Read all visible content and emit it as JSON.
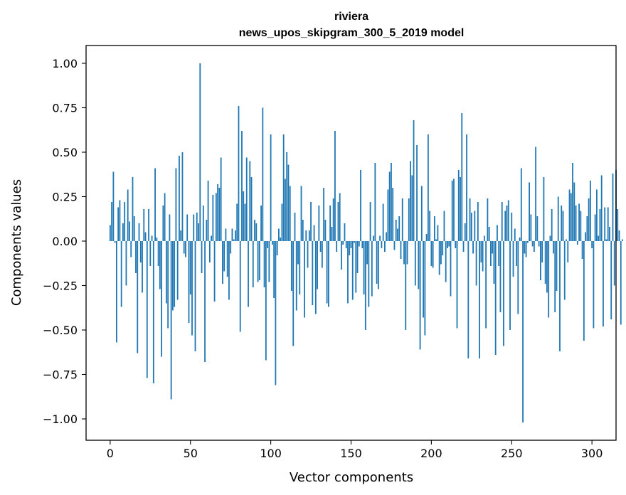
{
  "chart_data": {
    "type": "bar",
    "title_lines": [
      "riviera",
      "news_upos_skipgram_300_5_2019 model"
    ],
    "xlabel": "Vector components",
    "ylabel": "Components values",
    "xlim": [
      -15,
      315
    ],
    "ylim": [
      -1.12,
      1.1
    ],
    "xticks": [
      0,
      50,
      100,
      150,
      200,
      250,
      300
    ],
    "xtick_labels": [
      "0",
      "50",
      "100",
      "150",
      "200",
      "250",
      "300"
    ],
    "yticks": [
      1.0,
      0.75,
      0.5,
      0.25,
      0.0,
      -0.25,
      -0.5,
      -0.75,
      -1.0
    ],
    "ytick_labels": [
      "1.00",
      "0.75",
      "0.50",
      "0.25",
      "0.00",
      "−0.25",
      "−0.50",
      "−0.75",
      "−1.00"
    ],
    "bar_color": "#1f77b4",
    "values": [
      0.09,
      0.22,
      0.39,
      -0.01,
      -0.57,
      0.19,
      0.23,
      -0.37,
      0.1,
      0.22,
      -0.25,
      0.29,
      0.11,
      -0.09,
      0.36,
      0.14,
      -0.18,
      -0.63,
      0.1,
      -0.12,
      -0.29,
      0.18,
      0.05,
      -0.77,
      0.18,
      -0.14,
      0.03,
      -0.8,
      0.41,
      0.02,
      -0.14,
      -0.27,
      -0.65,
      0.2,
      0.27,
      -0.35,
      -0.49,
      0.15,
      -0.89,
      -0.39,
      -0.37,
      0.41,
      -0.33,
      0.48,
      0.06,
      0.5,
      -0.07,
      -0.09,
      0.15,
      -0.46,
      -0.3,
      -0.53,
      0.15,
      -0.62,
      0.16,
      0.1,
      1.0,
      -0.18,
      0.2,
      -0.68,
      0.12,
      0.34,
      -0.12,
      0.03,
      0.26,
      -0.34,
      0.27,
      0.32,
      0.3,
      0.47,
      -0.24,
      -0.17,
      0.07,
      -0.2,
      -0.33,
      -0.07,
      0.07,
      0.01,
      0.06,
      0.21,
      0.76,
      -0.51,
      0.62,
      0.28,
      0.21,
      0.47,
      -0.37,
      0.45,
      0.36,
      -0.26,
      0.12,
      0.1,
      -0.23,
      -0.22,
      0.2,
      0.75,
      -0.26,
      -0.67,
      -0.04,
      -0.23,
      0.6,
      -0.02,
      -0.32,
      -0.81,
      -0.08,
      0.07,
      0.02,
      0.21,
      0.6,
      0.35,
      0.5,
      0.43,
      0.31,
      -0.28,
      -0.59,
      0.16,
      -0.39,
      -0.13,
      -0.3,
      0.31,
      0.12,
      -0.43,
      0.06,
      -0.15,
      0.06,
      0.22,
      -0.36,
      0.09,
      -0.41,
      -0.27,
      0.2,
      -0.06,
      -0.15,
      0.3,
      0.12,
      -0.35,
      -0.37,
      0.2,
      0.08,
      0.24,
      0.62,
      -0.06,
      0.22,
      0.27,
      -0.16,
      -0.02,
      0.1,
      -0.04,
      -0.35,
      -0.08,
      -0.04,
      -0.33,
      -0.01,
      -0.29,
      -0.18,
      -0.03,
      0.4,
      -0.04,
      -0.3,
      -0.5,
      -0.13,
      -0.37,
      0.22,
      -0.31,
      0.03,
      0.44,
      -0.24,
      -0.27,
      0.03,
      -0.04,
      0.21,
      -0.06,
      0.05,
      0.29,
      0.39,
      0.44,
      0.3,
      -0.05,
      0.12,
      0.07,
      0.14,
      -0.1,
      0.24,
      -0.13,
      -0.5,
      -0.13,
      0.24,
      0.45,
      0.37,
      0.68,
      -0.25,
      0.54,
      -0.27,
      -0.61,
      0.31,
      -0.43,
      -0.53,
      0.04,
      0.6,
      0.17,
      -0.14,
      -0.15,
      0.14,
      0.01,
      0.09,
      -0.19,
      -0.13,
      -0.08,
      0.17,
      -0.23,
      -0.04,
      -0.03,
      -0.31,
      0.34,
      0.35,
      -0.04,
      -0.49,
      0.4,
      0.36,
      0.72,
      -0.06,
      0.1,
      0.6,
      -0.66,
      0.24,
      0.16,
      -0.07,
      0.17,
      -0.25,
      0.22,
      -0.66,
      -0.12,
      -0.17,
      0.03,
      -0.49,
      0.24,
      0.08,
      -0.14,
      -0.07,
      -0.24,
      -0.64,
      0.09,
      -0.14,
      -0.4,
      0.22,
      -0.59,
      0.17,
      0.2,
      0.23,
      -0.5,
      0.16,
      -0.2,
      0.07,
      -0.14,
      -0.41,
      0.02,
      0.41,
      -1.02,
      -0.07,
      -0.09,
      -0.01,
      0.33,
      0.15,
      -0.03,
      -0.06,
      0.53,
      0.14,
      -0.03,
      -0.22,
      -0.12,
      0.36,
      -0.24,
      -0.29,
      -0.43,
      0.03,
      0.18,
      -0.07,
      -0.4,
      -0.28,
      0.25,
      -0.62,
      0.2,
      0.17,
      -0.33,
      0.01,
      -0.12,
      0.29,
      0.27,
      0.44,
      0.33,
      0.2,
      -0.02,
      0.21,
      0.17,
      -0.1,
      -0.56,
      0.05,
      0.14,
      0.24,
      0.34,
      -0.04,
      -0.49,
      0.15,
      0.29,
      0.03,
      0.18,
      0.37,
      -0.48,
      0.19,
      0.01,
      0.19,
      0.08,
      -0.44,
      0.38,
      -0.25,
      0.4,
      0.18,
      0.06,
      -0.47,
      0.01
    ],
    "grid": false,
    "legend": "none"
  }
}
